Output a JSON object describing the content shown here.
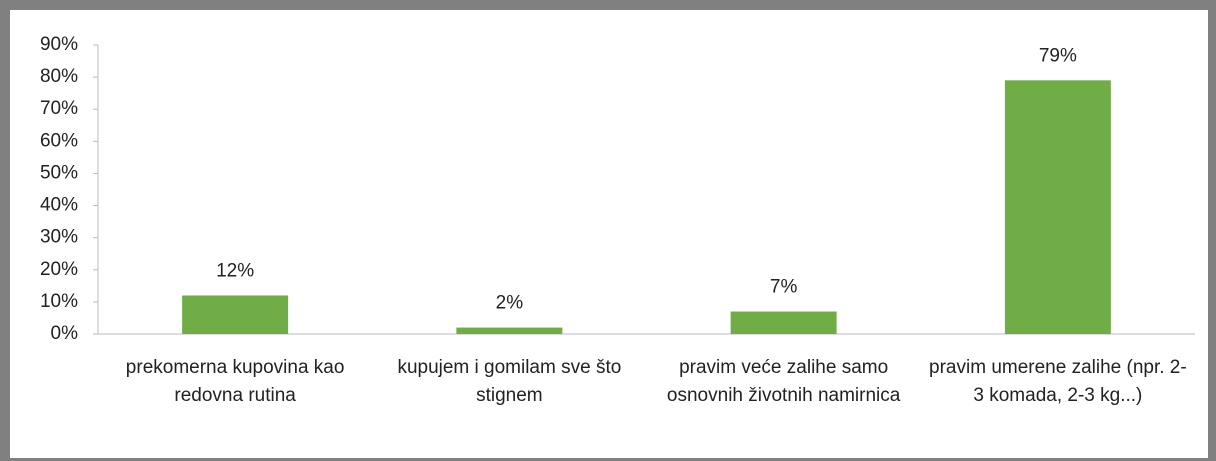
{
  "chart_data": {
    "type": "bar",
    "categories": [
      "prekomerna kupovina kao redovna rutina",
      "kupujem i gomilam sve što stignem",
      "pravim veće zalihe samo osnovnih životnih namirnica",
      "pravim umerene zalihe (npr. 2-3 komada, 2-3 kg...)"
    ],
    "values": [
      12,
      2,
      7,
      79
    ],
    "value_labels": [
      "12%",
      "2%",
      "7%",
      "79%"
    ],
    "color": "#70ad47",
    "ylim": [
      0,
      90
    ],
    "yticks": [
      {
        "value": 0,
        "label": "0%"
      },
      {
        "value": 10,
        "label": "10%"
      },
      {
        "value": 20,
        "label": "20%"
      },
      {
        "value": 30,
        "label": "30%"
      },
      {
        "value": 40,
        "label": "40%"
      },
      {
        "value": 50,
        "label": "50%"
      },
      {
        "value": 60,
        "label": "60%"
      },
      {
        "value": 70,
        "label": "70%"
      },
      {
        "value": 80,
        "label": "80%"
      },
      {
        "value": 90,
        "label": "90%"
      }
    ],
    "grid": false
  }
}
